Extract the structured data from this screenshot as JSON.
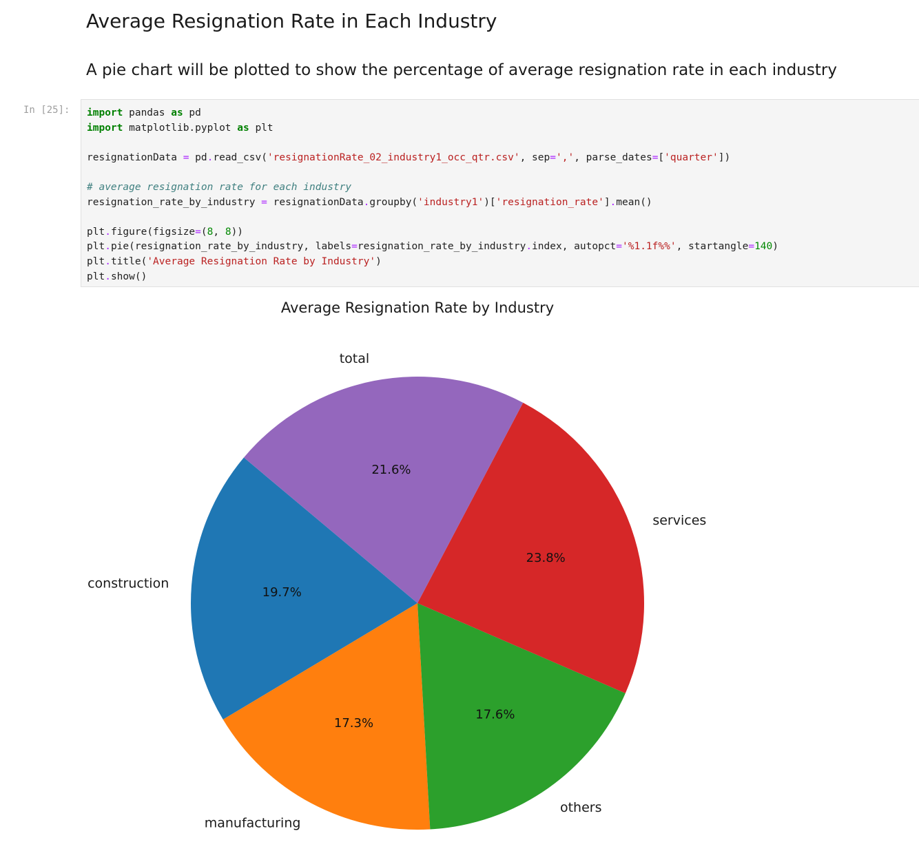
{
  "notebook": {
    "heading": "Average Resignation Rate in Each Industry",
    "subheading": "A pie chart will be plotted to show the percentage of average resignation rate in each industry",
    "prompt": "In [25]:",
    "code": {
      "l1_kw": "import",
      "l1_rest": " pandas ",
      "l1_kw2": "as",
      "l1_end": " pd",
      "l2_kw": "import",
      "l2_rest": " matplotlib.pyplot ",
      "l2_kw2": "as",
      "l2_end": " plt",
      "l4_a": "resignationData ",
      "l4_op": "=",
      "l4_b": " pd",
      "l4_op2": ".",
      "l4_c": "read_csv(",
      "l4_s1": "'resignationRate_02_industry1_occ_qtr.csv'",
      "l4_d": ", sep",
      "l4_op3": "=",
      "l4_s2": "','",
      "l4_e": ", parse_dates",
      "l4_op4": "=",
      "l4_f": "[",
      "l4_s3": "'quarter'",
      "l4_g": "])",
      "l6_comment": "# average resignation rate for each industry",
      "l7_a": "resignation_rate_by_industry ",
      "l7_op": "=",
      "l7_b": " resignationData",
      "l7_op2": ".",
      "l7_c": "groupby(",
      "l7_s1": "'industry1'",
      "l7_d": ")[",
      "l7_s2": "'resignation_rate'",
      "l7_e": "]",
      "l7_op3": ".",
      "l7_f": "mean()",
      "l9_a": "plt",
      "l9_op": ".",
      "l9_b": "figure(figsize",
      "l9_op2": "=",
      "l9_c": "(",
      "l9_n1": "8",
      "l9_d": ", ",
      "l9_n2": "8",
      "l9_e": "))",
      "l10_a": "plt",
      "l10_op": ".",
      "l10_b": "pie(resignation_rate_by_industry, labels",
      "l10_op2": "=",
      "l10_c": "resignation_rate_by_industry",
      "l10_op3": ".",
      "l10_d": "index, autopct",
      "l10_op4": "=",
      "l10_s1": "'%1.1f%%'",
      "l10_e": ", startangle",
      "l10_op5": "=",
      "l10_n1": "140",
      "l10_f": ")",
      "l11_a": "plt",
      "l11_op": ".",
      "l11_b": "title(",
      "l11_s1": "'Average Resignation Rate by Industry'",
      "l11_c": ")",
      "l12_a": "plt",
      "l12_op": ".",
      "l12_b": "show()"
    }
  },
  "chart_data": {
    "type": "pie",
    "title": "Average Resignation Rate by Industry",
    "startangle": 140,
    "labels": [
      "construction",
      "manufacturing",
      "others",
      "services",
      "total"
    ],
    "values": [
      19.7,
      17.3,
      17.6,
      23.8,
      21.6
    ],
    "pct_labels": [
      "19.7%",
      "17.3%",
      "17.6%",
      "23.8%",
      "21.6%"
    ],
    "colors": [
      "#1f77b4",
      "#ff7f0e",
      "#2ca02c",
      "#d62728",
      "#9467bd"
    ]
  }
}
